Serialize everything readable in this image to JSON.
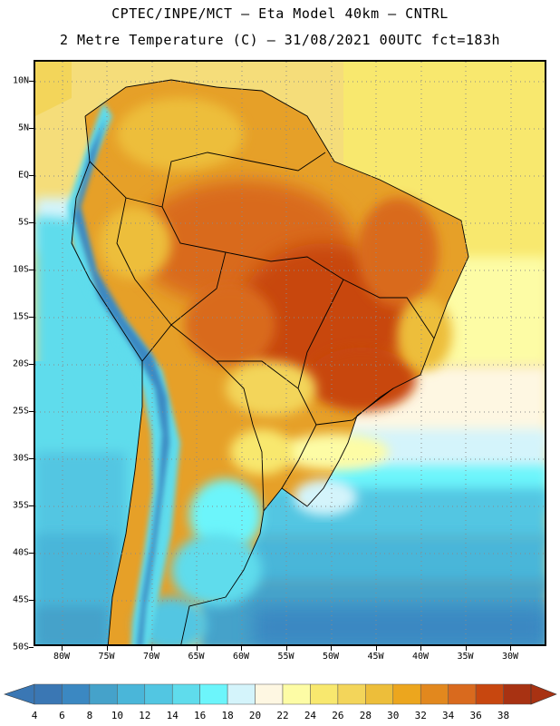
{
  "header": {
    "line1": "CPTEC/INPE/MCT –  Eta Model 40km – CNTRL",
    "line2": "2 Metre Temperature (C) – 31/08/2021 00UTC fct=183h"
  },
  "axes": {
    "latitudes": [
      "10N",
      "5N",
      "EQ",
      "5S",
      "10S",
      "15S",
      "20S",
      "25S",
      "30S",
      "35S",
      "40S",
      "45S",
      "50S"
    ],
    "longitudes": [
      "80W",
      "75W",
      "70W",
      "65W",
      "60W",
      "55W",
      "50W",
      "45W",
      "40W",
      "35W",
      "30W"
    ]
  },
  "colorbar": {
    "labels": [
      "4",
      "6",
      "8",
      "10",
      "12",
      "14",
      "16",
      "18",
      "20",
      "22",
      "24",
      "26",
      "28",
      "30",
      "32",
      "34",
      "36",
      "38"
    ],
    "colors": [
      "#3a77b4",
      "#3b88c2",
      "#45a2ca",
      "#4ab6d9",
      "#52c6e2",
      "#5fdcec",
      "#6cf5fb",
      "#d4f4fb",
      "#fef7e2",
      "#fdfca5",
      "#f8e86e",
      "#f3d55a",
      "#edbe3a",
      "#eca61e",
      "#e2881e",
      "#d96a1e",
      "#c8470f",
      "#a83212"
    ]
  },
  "map": {
    "region": "South America",
    "field": "2 Metre Temperature",
    "units": "C",
    "colors": {
      "ocean_north": "#f5dd7a",
      "ocean_mid": "#fef7e2",
      "ocean_cool": "#5fdcec",
      "ocean_south": "#45a2ca",
      "land_hot": "#c8470f",
      "land_warm": "#e6a028",
      "andes": "#3a77b4",
      "coast": "#000000"
    }
  }
}
